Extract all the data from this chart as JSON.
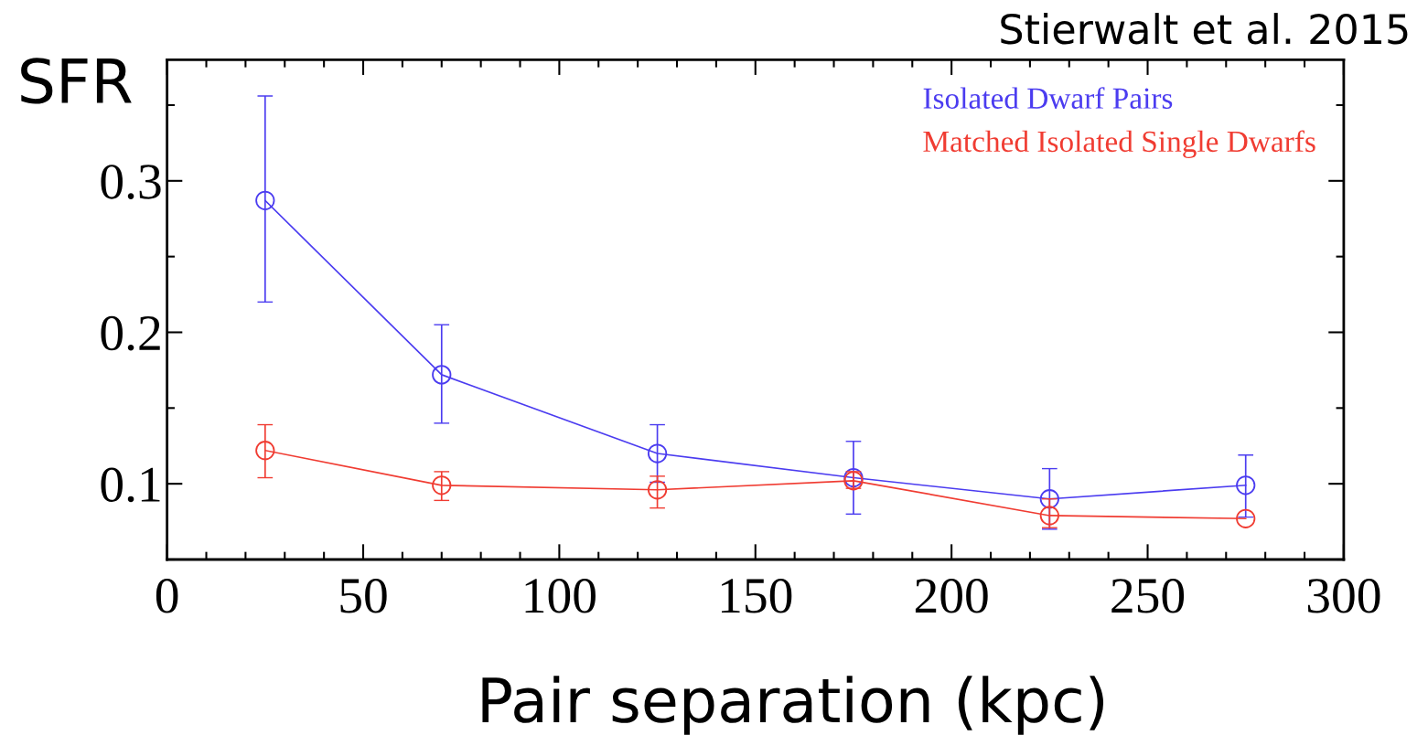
{
  "chart_data": {
    "type": "line",
    "ylabel": "SFR",
    "xlabel": "Pair separation (kpc)",
    "annotations": [
      "Stierwalt et al. 2015"
    ],
    "x": [
      25,
      70,
      125,
      175,
      225,
      275
    ],
    "series": [
      {
        "name": "Isolated Dwarf Pairs",
        "color": "#4b3cf0",
        "values": [
          0.287,
          0.172,
          0.12,
          0.104,
          0.09,
          0.099
        ],
        "errors": [
          [
            0.22,
            0.356
          ],
          [
            0.14,
            0.205
          ],
          [
            0.101,
            0.139
          ],
          [
            0.08,
            0.128
          ],
          [
            0.07,
            0.11
          ],
          [
            0.078,
            0.119
          ]
        ]
      },
      {
        "name": "Matched Isolated Single Dwarfs",
        "color": "#f03c32",
        "values": [
          0.122,
          0.099,
          0.096,
          0.102,
          0.079,
          0.077
        ],
        "errors": [
          [
            0.104,
            0.139
          ],
          [
            0.089,
            0.108
          ],
          [
            0.084,
            0.105
          ],
          [
            0.097,
            0.108
          ],
          [
            0.071,
            0.09
          ],
          null
        ]
      }
    ],
    "xlim": [
      0,
      300
    ],
    "xticks": [
      0,
      50,
      100,
      150,
      200,
      250,
      300
    ],
    "ylim": [
      0.05,
      0.38
    ],
    "yticks": [
      0.1,
      0.2,
      0.3
    ],
    "marker": "circle",
    "legend": "top right",
    "grid": false
  }
}
